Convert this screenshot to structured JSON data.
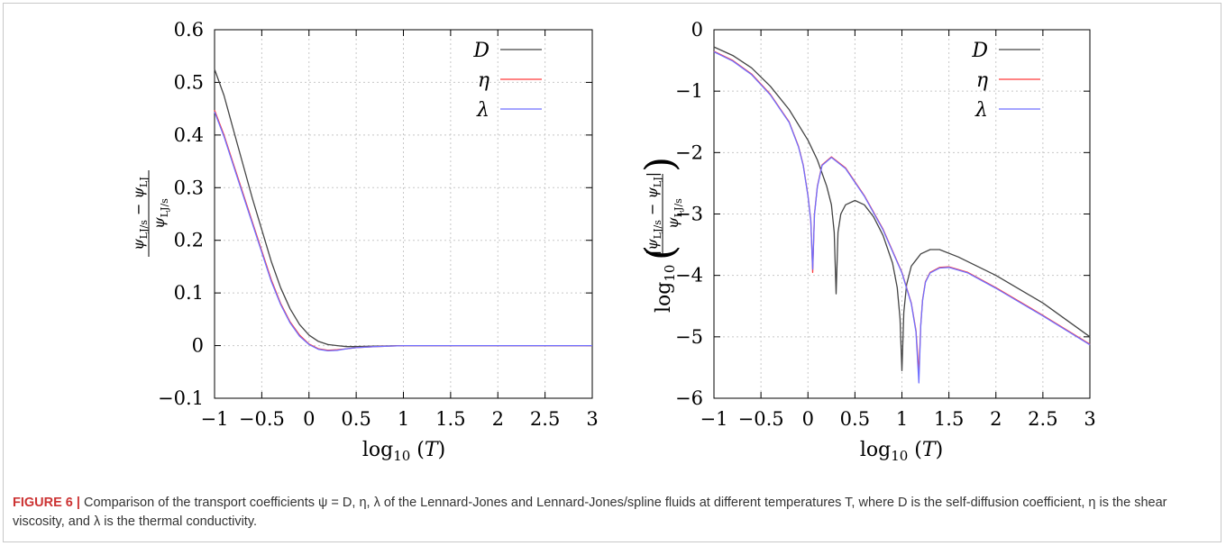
{
  "caption": {
    "label": "FIGURE 6 |",
    "text": "Comparison of the transport coefficients ψ = D, η, λ of the Lennard-Jones and Lennard-Jones/spline fluids at different temperatures T, where D is the self-diffusion coefficient, η is the shear viscosity, and λ is the thermal conductivity."
  },
  "colors": {
    "D": "#444444",
    "eta": "#ff3b3b",
    "lambda": "#6f6fff",
    "grid": "#c8c8c8"
  },
  "chart_data": [
    {
      "type": "line",
      "xlabel": "log10(T)",
      "ylabel": "(ψLJ/s − ψLJ) / ψLJ/s",
      "xlim": [
        -1,
        3
      ],
      "ylim": [
        -0.1,
        0.6
      ],
      "xticks": [
        -1,
        -0.5,
        0,
        0.5,
        1,
        1.5,
        2,
        2.5,
        3
      ],
      "xtick_labels": [
        "−1",
        "−0.5",
        "0",
        "0.5",
        "1",
        "1.5",
        "2",
        "2.5",
        "3"
      ],
      "yticks": [
        -0.1,
        0,
        0.1,
        0.2,
        0.3,
        0.4,
        0.5,
        0.6
      ],
      "ytick_labels": [
        "−0.1",
        "0",
        "0.1",
        "0.2",
        "0.3",
        "0.4",
        "0.5",
        "0.6"
      ],
      "grid": true,
      "legend": "top-right",
      "series": [
        {
          "name": "D",
          "x": [
            -1,
            -0.9,
            -0.8,
            -0.7,
            -0.6,
            -0.5,
            -0.4,
            -0.3,
            -0.2,
            -0.1,
            0,
            0.1,
            0.2,
            0.3,
            0.4,
            0.5,
            0.7,
            1,
            1.5,
            2,
            3
          ],
          "y": [
            0.525,
            0.475,
            0.41,
            0.345,
            0.28,
            0.22,
            0.16,
            0.11,
            0.07,
            0.04,
            0.02,
            0.008,
            0.002,
            0.0,
            -0.002,
            -0.002,
            -0.001,
            0.0,
            0.0,
            0.0,
            0.0
          ]
        },
        {
          "name": "η",
          "x": [
            -1,
            -0.9,
            -0.8,
            -0.7,
            -0.6,
            -0.5,
            -0.4,
            -0.3,
            -0.2,
            -0.1,
            0,
            0.1,
            0.2,
            0.3,
            0.4,
            0.5,
            0.7,
            1,
            1.5,
            2,
            3
          ],
          "y": [
            0.447,
            0.4,
            0.345,
            0.29,
            0.235,
            0.18,
            0.125,
            0.08,
            0.045,
            0.02,
            0.003,
            -0.006,
            -0.009,
            -0.008,
            -0.006,
            -0.004,
            -0.002,
            0.0,
            0.0,
            0.0,
            0.0
          ]
        },
        {
          "name": "λ",
          "x": [
            -1,
            -0.9,
            -0.8,
            -0.7,
            -0.6,
            -0.5,
            -0.4,
            -0.3,
            -0.2,
            -0.1,
            0,
            0.1,
            0.2,
            0.3,
            0.4,
            0.5,
            0.7,
            1,
            1.5,
            2,
            3
          ],
          "y": [
            0.444,
            0.397,
            0.342,
            0.287,
            0.232,
            0.177,
            0.122,
            0.078,
            0.043,
            0.018,
            0.002,
            -0.007,
            -0.01,
            -0.009,
            -0.006,
            -0.004,
            -0.002,
            0.0,
            0.0,
            0.0,
            0.0
          ]
        }
      ]
    },
    {
      "type": "line",
      "xlabel": "log10(T)",
      "ylabel": "log10( |ψLJ/s − ψLJ| / ψLJ/s )",
      "xlim": [
        -1,
        3
      ],
      "ylim": [
        -6,
        0
      ],
      "xticks": [
        -1,
        -0.5,
        0,
        0.5,
        1,
        1.5,
        2,
        2.5,
        3
      ],
      "xtick_labels": [
        "−1",
        "−0.5",
        "0",
        "0.5",
        "1",
        "1.5",
        "2",
        "2.5",
        "3"
      ],
      "yticks": [
        -6,
        -5,
        -4,
        -3,
        -2,
        -1,
        0
      ],
      "ytick_labels": [
        "−6",
        "−5",
        "−4",
        "−3",
        "−2",
        "−1",
        "0"
      ],
      "grid": true,
      "legend": "top-right",
      "series": [
        {
          "name": "D",
          "x": [
            -1,
            -0.8,
            -0.6,
            -0.4,
            -0.2,
            0,
            0.1,
            0.2,
            0.25,
            0.28,
            0.3,
            0.32,
            0.35,
            0.4,
            0.5,
            0.6,
            0.7,
            0.8,
            0.9,
            0.95,
            0.98,
            1.0,
            1.02,
            1.05,
            1.1,
            1.2,
            1.3,
            1.4,
            1.6,
            2,
            2.5,
            3
          ],
          "y": [
            -0.28,
            -0.42,
            -0.62,
            -0.92,
            -1.3,
            -1.8,
            -2.12,
            -2.55,
            -2.85,
            -3.3,
            -4.3,
            -3.3,
            -3.0,
            -2.85,
            -2.78,
            -2.85,
            -3.05,
            -3.35,
            -3.8,
            -4.2,
            -4.7,
            -5.55,
            -4.6,
            -4.15,
            -3.85,
            -3.65,
            -3.58,
            -3.58,
            -3.7,
            -4.0,
            -4.45,
            -5.0
          ]
        },
        {
          "name": "η",
          "x": [
            -1,
            -0.8,
            -0.6,
            -0.4,
            -0.2,
            -0.1,
            -0.05,
            0.0,
            0.03,
            0.05,
            0.07,
            0.1,
            0.15,
            0.25,
            0.4,
            0.6,
            0.8,
            1.0,
            1.1,
            1.15,
            1.18,
            1.2,
            1.22,
            1.25,
            1.3,
            1.4,
            1.5,
            1.7,
            2,
            2.5,
            3
          ],
          "y": [
            -0.35,
            -0.5,
            -0.72,
            -1.05,
            -1.5,
            -1.9,
            -2.2,
            -2.7,
            -3.1,
            -3.95,
            -3.0,
            -2.55,
            -2.2,
            -2.07,
            -2.25,
            -2.7,
            -3.25,
            -3.95,
            -4.45,
            -4.9,
            -5.6,
            -4.8,
            -4.4,
            -4.1,
            -3.95,
            -3.87,
            -3.86,
            -3.95,
            -4.2,
            -4.65,
            -5.12
          ]
        },
        {
          "name": "λ",
          "x": [
            -1,
            -0.8,
            -0.6,
            -0.4,
            -0.2,
            -0.1,
            -0.05,
            0.0,
            0.03,
            0.05,
            0.07,
            0.1,
            0.15,
            0.25,
            0.4,
            0.6,
            0.8,
            1.0,
            1.1,
            1.15,
            1.18,
            1.2,
            1.22,
            1.25,
            1.3,
            1.4,
            1.5,
            1.7,
            2,
            2.5,
            3
          ],
          "y": [
            -0.36,
            -0.51,
            -0.73,
            -1.06,
            -1.51,
            -1.91,
            -2.21,
            -2.71,
            -3.11,
            -3.9,
            -3.01,
            -2.56,
            -2.21,
            -2.08,
            -2.26,
            -2.71,
            -3.26,
            -3.96,
            -4.46,
            -4.92,
            -5.75,
            -4.82,
            -4.41,
            -4.11,
            -3.96,
            -3.88,
            -3.87,
            -3.96,
            -4.21,
            -4.66,
            -5.13
          ]
        }
      ]
    }
  ]
}
